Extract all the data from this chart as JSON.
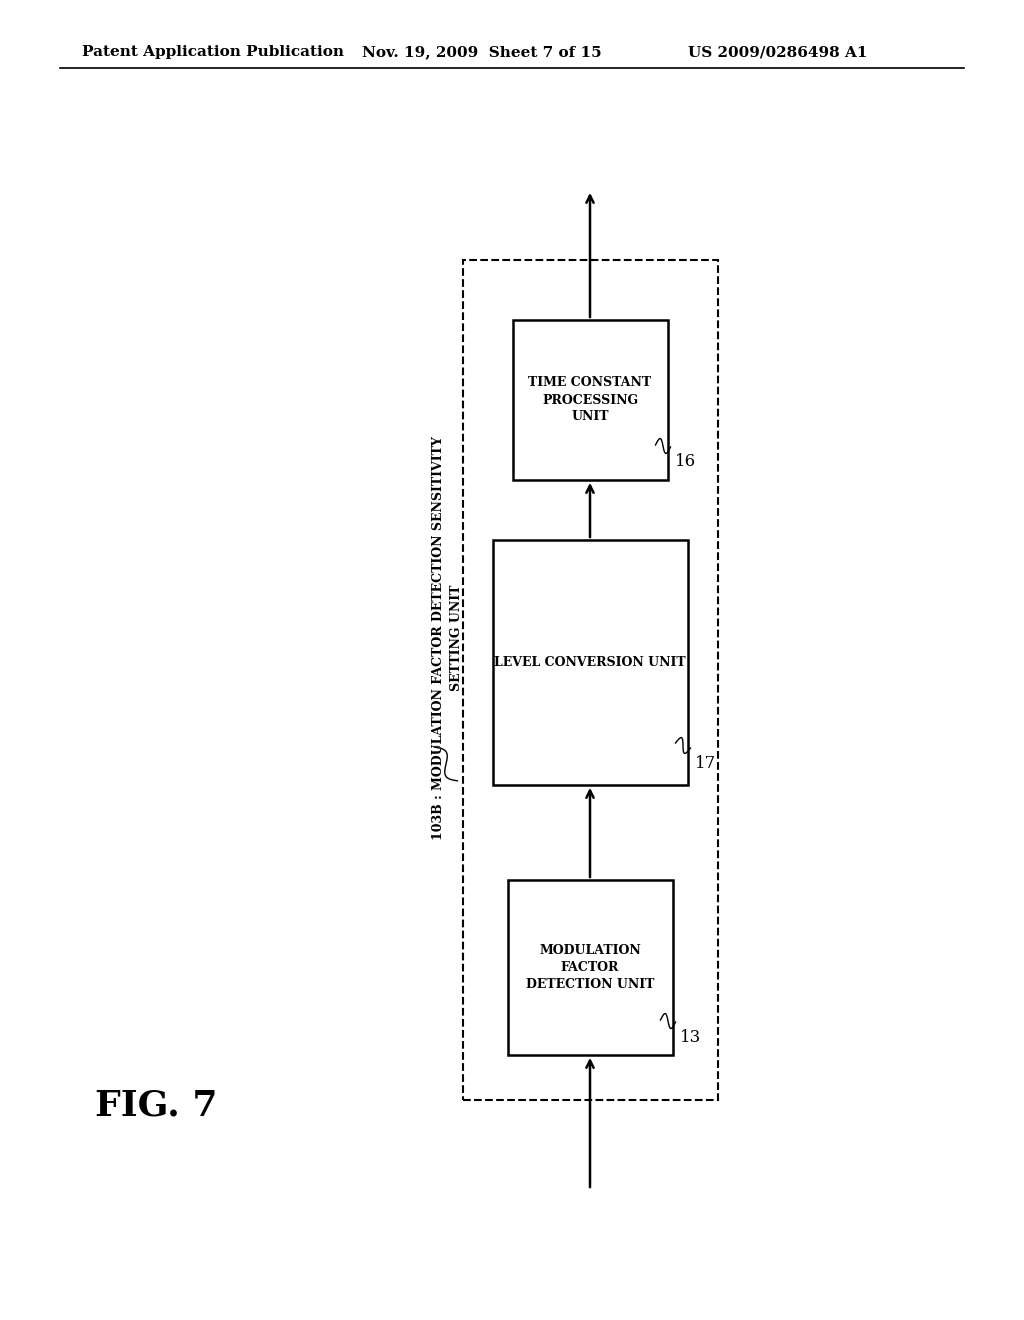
{
  "bg_color": "#ffffff",
  "header_left": "Patent Application Publication",
  "header_mid": "Nov. 19, 2009  Sheet 7 of 15",
  "header_right": "US 2009/0286498 A1",
  "fig_label": "FIG. 7",
  "boxes": [
    {
      "id": "box1",
      "label": "MODULATION\nFACTOR\nDETECTION UNIT",
      "number": "13"
    },
    {
      "id": "box2",
      "label": "LEVEL CONVERSION UNIT",
      "number": "17"
    },
    {
      "id": "box3",
      "label": "TIME CONSTANT\nPROCESSING\nUNIT",
      "number": "16"
    }
  ],
  "outer_label_line1": "103B : MODULATION FACTOR DETECTION SENSITIVITY",
  "outer_label_line2": "SETTING UNIT",
  "dashed_border": true
}
